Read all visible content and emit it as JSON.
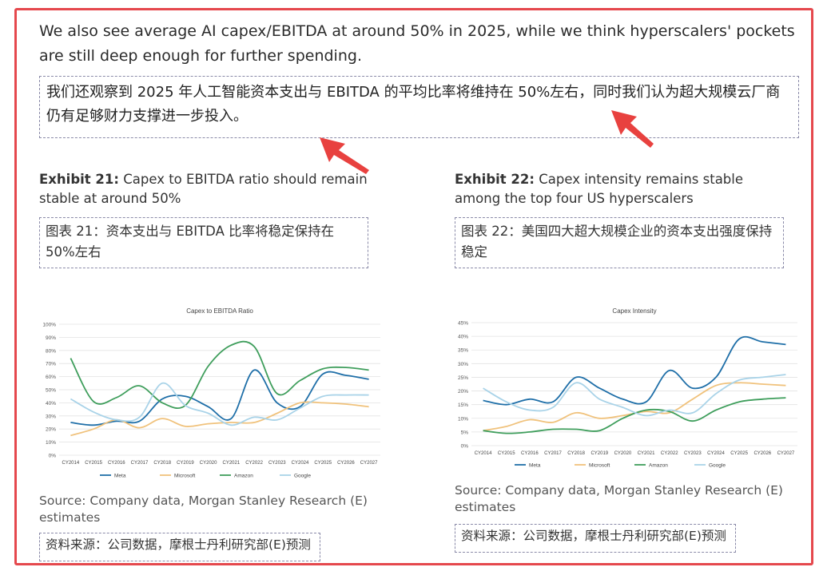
{
  "intro": {
    "en": "We also see average AI capex/EBITDA at around 50% in 2025, while we think hyperscalers' pockets are still deep enough for further spending.",
    "zh": "我们还观察到 2025 年人工智能资本支出与 EBITDA 的平均比率将维持在 50%左右，同时我们认为超大规模云厂商仍有足够财力支撑进一步投入。"
  },
  "exhibits": [
    {
      "label": "Exhibit 21:",
      "title": "Capex to EBITDA ratio should remain stable at around 50%",
      "zh": "图表 21：资本支出与 EBITDA 比率将稳定保持在 50%左右",
      "source": "Source: Company data, Morgan Stanley Research (E) estimates",
      "source_zh": "资料来源：公司数据，摩根士丹利研究部(E)预测"
    },
    {
      "label": "Exhibit 22:",
      "title": "Capex intensity remains stable among the top four US hyperscalers",
      "zh": "图表 22：美国四大超大规模企业的资本支出强度保持稳定",
      "source": "Source: Company data, Morgan Stanley Research (E) estimates",
      "source_zh": "资料来源：公司数据，摩根士丹利研究部(E)预测"
    }
  ],
  "chart_data": [
    {
      "type": "line",
      "title": "Capex to EBITDA Ratio",
      "categories": [
        "CY2014",
        "CY2015",
        "CY2016",
        "CY2017",
        "CY2018",
        "CY2019",
        "CY2020",
        "CY2021",
        "CY2022",
        "CY2023",
        "CY2024",
        "CY2025",
        "CY2026",
        "CY2027"
      ],
      "series": [
        {
          "name": "Meta",
          "color": "#1f6fa8",
          "values": [
            25,
            23,
            26,
            26,
            43,
            45,
            37,
            28,
            65,
            40,
            37,
            62,
            61,
            58
          ]
        },
        {
          "name": "Microsoft",
          "color": "#f0c27c",
          "values": [
            15,
            20,
            27,
            21,
            28,
            22,
            24,
            25,
            25,
            32,
            40,
            40,
            39,
            37
          ]
        },
        {
          "name": "Amazon",
          "color": "#3f9e5c",
          "values": [
            74,
            41,
            44,
            53,
            40,
            38,
            68,
            84,
            83,
            47,
            57,
            66,
            67,
            65
          ]
        },
        {
          "name": "Google",
          "color": "#a9d3e8",
          "values": [
            43,
            33,
            27,
            29,
            55,
            38,
            32,
            23,
            29,
            27,
            36,
            45,
            46,
            46
          ]
        }
      ],
      "ylim": [
        0,
        100
      ],
      "yticks": [
        {
          "value": 0,
          "label": "0%"
        },
        {
          "value": 10,
          "label": "10%"
        },
        {
          "value": 20,
          "label": "20%"
        },
        {
          "value": 30,
          "label": "30%"
        },
        {
          "value": 40,
          "label": "40%"
        },
        {
          "value": 50,
          "label": "50%"
        },
        {
          "value": 60,
          "label": "60%"
        },
        {
          "value": 70,
          "label": "70%"
        },
        {
          "value": 80,
          "label": "80%"
        },
        {
          "value": 90,
          "label": "90%"
        },
        {
          "value": 100,
          "label": "100%"
        }
      ],
      "grid": true,
      "legend": "bottom"
    },
    {
      "type": "line",
      "title": "Capex Intensity",
      "categories": [
        "CY2014",
        "CY2015",
        "CY2016",
        "CY2017",
        "CY2018",
        "CY2019",
        "CY2020",
        "CY2021",
        "CY2022",
        "CY2023",
        "CY2024",
        "CY2025",
        "CY2026",
        "CY2027"
      ],
      "series": [
        {
          "name": "Meta",
          "color": "#1f6fa8",
          "values": [
            16.5,
            15,
            17,
            16,
            25,
            21,
            17,
            16,
            27.5,
            21,
            25,
            39,
            38,
            37
          ]
        },
        {
          "name": "Microsoft",
          "color": "#f0c27c",
          "values": [
            5.5,
            7,
            9.5,
            8.5,
            12,
            10,
            11,
            12.5,
            12,
            17,
            22,
            23,
            22.5,
            22
          ]
        },
        {
          "name": "Amazon",
          "color": "#3f9e5c",
          "values": [
            5.5,
            4.5,
            5,
            6,
            6,
            5.5,
            10,
            13,
            12.5,
            9,
            13,
            16,
            17,
            17.5
          ]
        },
        {
          "name": "Google",
          "color": "#a9d3e8",
          "values": [
            21,
            16,
            13,
            14,
            23,
            17,
            14,
            11,
            13,
            12,
            19,
            24,
            25,
            26
          ]
        }
      ],
      "ylim": [
        0,
        45
      ],
      "yticks": [
        {
          "value": 0,
          "label": "0%"
        },
        {
          "value": 5,
          "label": "5%"
        },
        {
          "value": 10,
          "label": "10%"
        },
        {
          "value": 15,
          "label": "15%"
        },
        {
          "value": 20,
          "label": "20%"
        },
        {
          "value": 25,
          "label": "25%"
        },
        {
          "value": 30,
          "label": "30%"
        },
        {
          "value": 35,
          "label": "35%"
        },
        {
          "value": 40,
          "label": "40%"
        },
        {
          "value": 45,
          "label": "45%"
        }
      ],
      "grid": true,
      "legend": "bottom"
    }
  ]
}
